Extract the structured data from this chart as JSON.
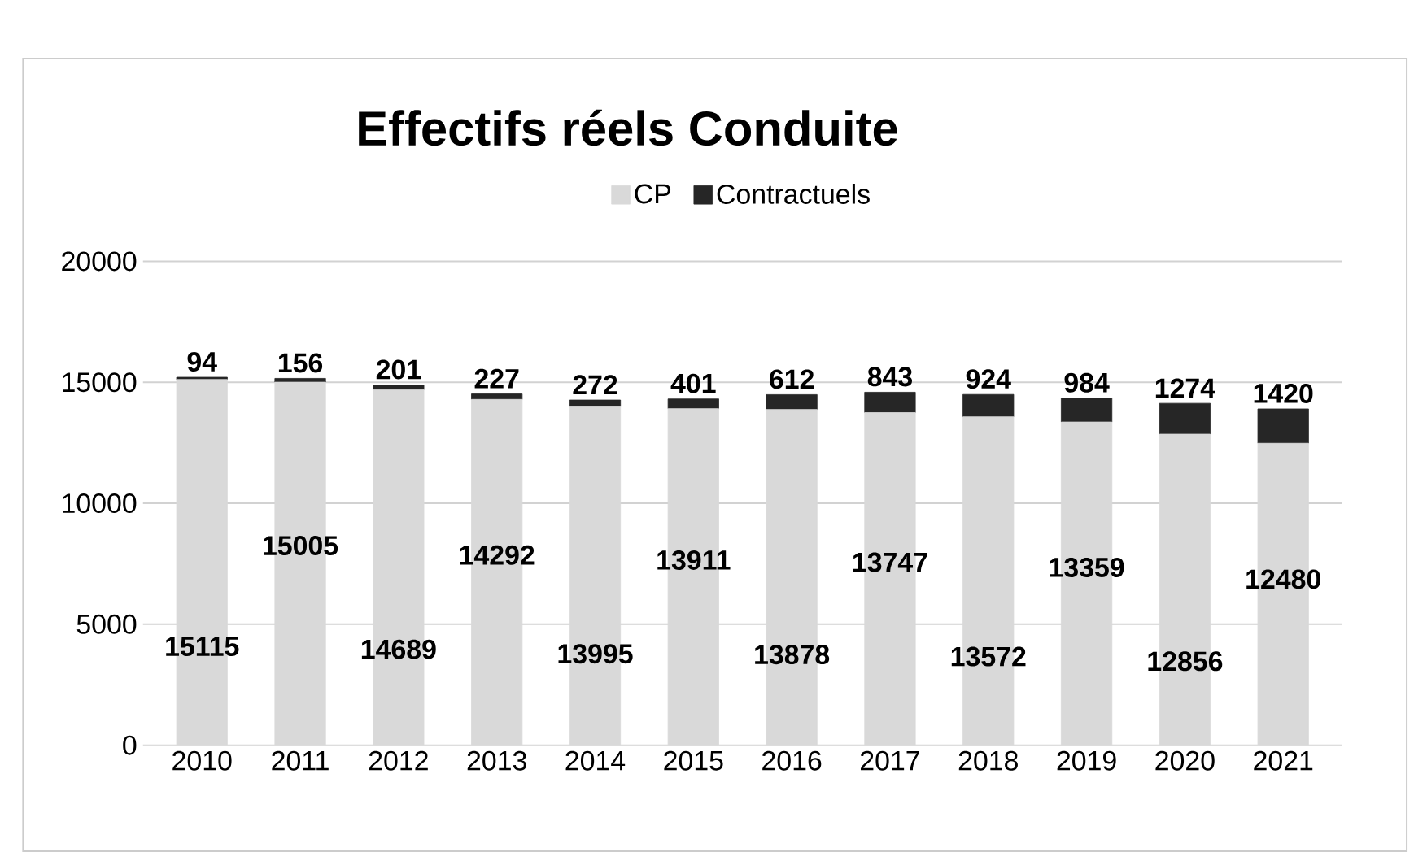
{
  "chart_data": {
    "type": "bar",
    "title": "Effectifs réels Conduite",
    "stacked": true,
    "data_labels": true,
    "grid": "y",
    "legend": "top",
    "categories": [
      "2010",
      "2011",
      "2012",
      "2013",
      "2014",
      "2015",
      "2016",
      "2017",
      "2018",
      "2019",
      "2020",
      "2021"
    ],
    "series": [
      {
        "name": "CP",
        "color": "#d9d9d9",
        "values": [
          15115,
          15005,
          14689,
          14292,
          13995,
          13911,
          13878,
          13747,
          13572,
          13359,
          12856,
          12480
        ]
      },
      {
        "name": "Contractuels",
        "color": "#262626",
        "values": [
          94,
          156,
          201,
          227,
          272,
          401,
          612,
          843,
          924,
          984,
          1274,
          1420
        ]
      }
    ],
    "ylim": [
      0,
      20000
    ],
    "yticks": [
      0,
      5000,
      10000,
      15000,
      20000
    ]
  }
}
